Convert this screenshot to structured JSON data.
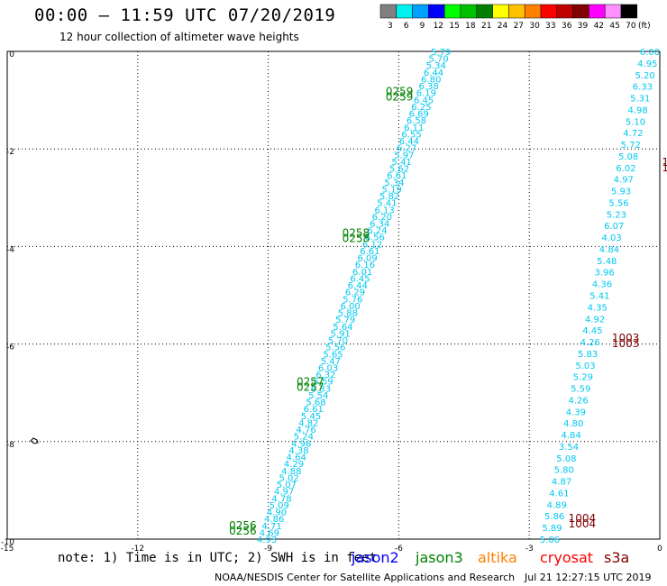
{
  "header": {
    "title": "00:00 – 11:59 UTC 07/20/2019",
    "subtitle": "12 hour collection of altimeter wave heights"
  },
  "colorbar": {
    "ticks": [
      "3",
      "6",
      "9",
      "12",
      "15",
      "18",
      "21",
      "24",
      "27",
      "30",
      "33",
      "36",
      "39",
      "42",
      "45",
      "70"
    ],
    "unit": "(ft)",
    "colors": [
      "#808080",
      "#00f0f0",
      "#00a0ff",
      "#0000ff",
      "#00ff00",
      "#00c000",
      "#008000",
      "#ffff00",
      "#ffc000",
      "#ff8000",
      "#ff0000",
      "#c00000",
      "#800000",
      "#ff00ff",
      "#ff90ff",
      "#000000"
    ]
  },
  "footer": {
    "note": "note: 1) Time is in UTC; 2) SWH is in feet",
    "credit": "NOAA/NESDIS Center for Satellite Applications and Research",
    "timestamp": "Jul 21 12:27:15 UTC 2019"
  },
  "missions": [
    {
      "name": "jason2",
      "color": "#0000ff"
    },
    {
      "name": "jason3",
      "color": "#008000"
    },
    {
      "name": "altika",
      "color": "#ff8000"
    },
    {
      "name": "cryosat",
      "color": "#ff0000"
    },
    {
      "name": "s3a",
      "color": "#800000"
    }
  ],
  "chart_data": {
    "type": "map",
    "x_ticks": [
      "-15",
      "-12",
      "-9",
      "-6",
      "-3",
      "0"
    ],
    "y_ticks": [
      "0",
      "-2",
      "-4",
      "-6",
      "-8",
      "-10"
    ],
    "xlim": [
      -15,
      0
    ],
    "ylim": [
      -10,
      0
    ],
    "grid": "dotted",
    "track_color": "#00c8f0",
    "tracks": [
      {
        "name": "west-track",
        "start": [
          -4.8,
          0
        ],
        "end": [
          -8.8,
          -10
        ],
        "values": [
          "5.79",
          "5.70",
          "5.34",
          "6.44",
          "6.80",
          "6.38",
          "6.19",
          "6.45",
          "6.25",
          "6.69",
          "6.58",
          "6.11",
          "6.55",
          "6.44",
          "6.27",
          "5.97",
          "5.41",
          "5.62",
          "6.61",
          "5.34",
          "5.19",
          "5.82",
          "5.41",
          "6.13",
          "6.20",
          "6.34",
          "6.24",
          "6.56",
          "6.12",
          "6.61",
          "6.09",
          "6.16",
          "6.01",
          "6.45",
          "6.44",
          "6.29",
          "5.76",
          "6.00",
          "5.88",
          "5.79",
          "5.64",
          "5.91",
          "5.70",
          "5.56",
          "5.65",
          "5.47",
          "6.03",
          "6.32",
          "5.59",
          "6.33",
          "5.54",
          "5.68",
          "6.61",
          "5.45",
          "4.82",
          "4.76",
          "5.24",
          "4.96",
          "4.38",
          "4.64",
          "4.29",
          "4.88",
          "5.02",
          "5.07",
          "4.97",
          "4.78",
          "5.09",
          "4.90",
          "4.86",
          "4.71",
          "4.69",
          "4.93"
        ]
      },
      {
        "name": "east-track",
        "start": [
          0,
          0
        ],
        "end": [
          -2.3,
          -10
        ],
        "values": [
          "6.00",
          "4.95",
          "5.20",
          "6.33",
          "5.31",
          "4.98",
          "5.10",
          "4.72",
          "5.72",
          "5.08",
          "6.02",
          "4.97",
          "5.93",
          "5.56",
          "5.23",
          "6.07",
          "4.03",
          "4.84",
          "5.48",
          "3.96",
          "4.36",
          "5.41",
          "4.35",
          "4.92",
          "4.45",
          "4.26",
          "5.83",
          "5.03",
          "5.29",
          "5.59",
          "4.26",
          "4.39",
          "4.80",
          "4.84",
          "3.54",
          "5.08",
          "5.80",
          "4.87",
          "4.61",
          "4.89",
          "5.86",
          "5.89",
          "5.06"
        ]
      }
    ],
    "time_labels": [
      {
        "text": "0259",
        "lon": -6.3,
        "lat": -0.9,
        "color": "#008000"
      },
      {
        "text": "0258",
        "lon": -7.3,
        "lat": -3.8,
        "color": "#008000"
      },
      {
        "text": "0257",
        "lon": -8.35,
        "lat": -6.85,
        "color": "#008000"
      },
      {
        "text": "0256",
        "lon": -9.9,
        "lat": -9.8,
        "color": "#008000"
      },
      {
        "text": "1003",
        "lon": -1.1,
        "lat": -5.95,
        "color": "#800000"
      },
      {
        "text": "1004",
        "lon": -2.1,
        "lat": -9.65,
        "color": "#800000"
      },
      {
        "text": "1",
        "lon": 0.05,
        "lat": -2.35,
        "color": "#800000"
      }
    ]
  }
}
